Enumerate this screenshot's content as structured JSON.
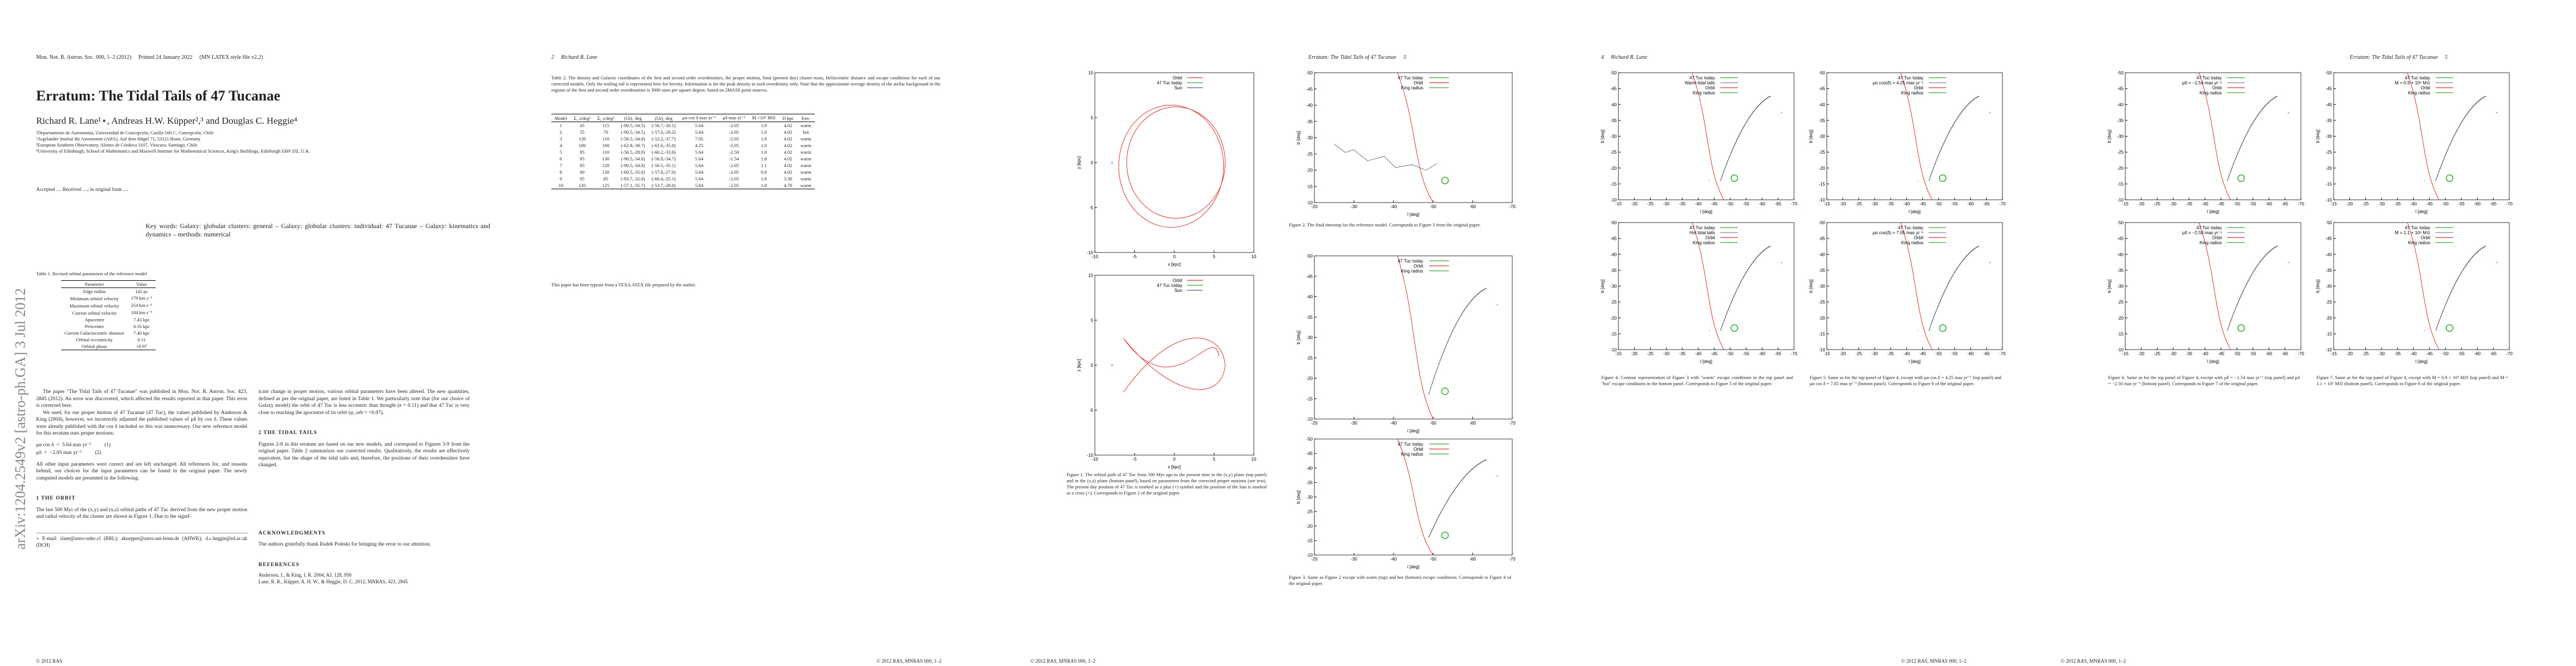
{
  "page1": {
    "header": "Mon. Not. R. Astron. Soc. 000, 1–2 (2012)     Printed 24 January 2022     (MN LATEX style file v2.2)",
    "title": "Erratum: The Tidal Tails of 47 Tucanae",
    "authors": "Richard R. Lane¹⋆, Andreas H.W. Küpper²,³ and Douglas C. Heggie⁴",
    "affiliations": [
      "¹Departamento de Astronomía, Universidad de Concepción, Casilla 160 C, Concepción, Chile",
      "²Argelander Institut für Astronomie (AIfA), Auf dem Hügel 71, 53121 Bonn, Germany",
      "³European Southern Observatory, Alonso de Córdova 3107, Vitacura, Santiago, Chile",
      "⁴University of Edinburgh, School of Mathematics and Maxwell Institute for Mathematical Sciences, King's Buildings, Edinburgh EH9 3JZ, U.K."
    ],
    "accepted": "Accepted .... Received ....; in original form ....",
    "keywords": "Key words: Galaxy: globular clusters: general – Galaxy: globular clusters: individual: 47 Tucanae – Galaxy: kinematics and dynamics – methods: numerical",
    "arxiv": "arXiv:1204.2549v2 [astro-ph.GA] 3 Jul 2012",
    "table1": {
      "caption": "Table 1. Revised orbital parameters of the reference model",
      "header": [
        "Parameter",
        "Value"
      ],
      "rows": [
        [
          "Edge radius",
          "142 pc"
        ],
        [
          "Minimum orbital velocity",
          "179 km s⁻¹"
        ],
        [
          "Maximum orbital velocity",
          "254 km s⁻¹"
        ],
        [
          "Current orbital velocity",
          "184 km s⁻¹"
        ],
        [
          "Apocentre",
          "7.43 kpc"
        ],
        [
          "Pericentre",
          "6.16 kpc"
        ],
        [
          "Current Galactocentric distance",
          "7.40 kpc"
        ],
        [
          "Orbital eccentricity",
          "0.11"
        ],
        [
          "Orbital phase",
          "+0.97"
        ]
      ]
    },
    "intro": [
      "The paper \"The Tidal Tails of 47 Tucanae\" was published in Mon. Not. R. Astron. Soc. 423, 2845 (2012). An error was discovered, which affected the results reported in that paper. This error is corrected here.",
      "We used, for our proper motion of 47 Tucanae (47 Tuc), the values published by Anderson & King (2004), however, we incorrectly adjusted the published values of μδ by cos δ. These values were already published with the cos δ included so this was unnecessary. Our new reference model for this erratum uses proper motions:"
    ],
    "eq1": "μα cos δ  =  5.64 mas yr⁻¹          (1)",
    "eq2": "μδ  =  −2.05 mas yr⁻¹          (2)",
    "after_eq": "All other input parameters were correct and are left unchanged. All references for, and reasons behind, our choices for the input parameters can be found in the original paper. The newly computed models are presented in the following.",
    "sec1": "1   THE ORBIT",
    "orbit": "The last 500 Myr of the (x,y) and (x,z) orbital paths of 47 Tuc derived from the new proper motion and radial velocity of the cluster are shown in Figure 1. Due to the signif-",
    "footnote": "⋆ E-mail: rlane@astro-udec.cl (RRL); akuepper@astro.uni-bonn.de (AHWK); d.c.heggie@ed.ac.uk (DCH)",
    "right_col": "icant change in proper motion, various orbital parameters have been altered. The new quantities, defined as per the original paper, are listed in Table 1. We particularly note that (for our choice of Galaxy model) the orbit of 47 Tuc is less eccentric than thought (e = 0.11) and that 47 Tuc is very close to reaching the apocentre of its orbit (φ_orb = +0.97).",
    "sec2": "2   THE TIDAL TAILS",
    "tails": "Figures 2-8 in this erratum are based on our new models, and correspond to Figures 3-9 from the original paper. Table 2 summarizes our corrected results. Qualitatively, the results are effectively equivalent, but the shape of the tidal tails and, therefore, the positions of their overdensities have changed.",
    "ack_head": "ACKNOWLEDGMENTS",
    "ack": "The authors gratefully thank Radek Poleski for bringing the error to our attention.",
    "ref_head": "REFERENCES",
    "refs": [
      "Anderson, J., & King, I. R. 2004, AJ, 128, 950",
      "Lane, R. R., Küpper, A. H. W., & Heggie, D. C. 2012, MNRAS, 423, 2845"
    ],
    "footer": "© 2012 RAS"
  },
  "page2": {
    "header": "2     Richard R. Lane",
    "table2": {
      "caption": "Table 2. The density and Galactic coordinates of the first and second order overdensities, the proper motion, final (present day) cluster mass, Heliocentric distance and escape conditions for each of our corrected models. Only the trailing tail is represented here for brevity. Information is for the peak density in each overdensity only. Note that the approximate average density of the stellar background in the regions of the first and second order overdensities is 3000 stars per square degree, based on 2MASS point sources.",
      "header": [
        "Model",
        "Σ₁ s/deg²",
        "Σ₂ s/deg²",
        "(l,b)₁ deg",
        "(l,b)₂ deg",
        "μα cos δ mas yr⁻¹",
        "μδ mas yr⁻¹",
        "M ×10⁶ M⊙",
        "D kpc",
        "Env."
      ],
      "rows": [
        [
          "1",
          "45",
          "115",
          "(-90.5,-34.5)",
          "(-56.7,-26.1)",
          "5.64",
          "-2.05",
          "1.0",
          "4.02",
          "warm"
        ],
        [
          "2",
          "55",
          "70",
          "(-90.5,-34.5)",
          "(-57.0,-29.2)",
          "5.64",
          "-2.05",
          "1.0",
          "4.02",
          "hot"
        ],
        [
          "3",
          "120",
          "110",
          "(-56.5,-34.0)",
          "(-52.2,-37.7)",
          "7.05",
          "-2.05",
          "1.0",
          "4.02",
          "warm"
        ],
        [
          "4",
          "100",
          "100",
          "(-62.8,-38.7)",
          "(-61.6,-35.0)",
          "4.25",
          "-2.05",
          "1.0",
          "4.02",
          "warm"
        ],
        [
          "5",
          "85",
          "110",
          "(-56.5,-28.0)",
          "(-60.2,-33.6)",
          "5.64",
          "-2.50",
          "1.0",
          "4.02",
          "warm"
        ],
        [
          "6",
          "95",
          "130",
          "(-90.5,-34.0)",
          "(-56.9,-34.7)",
          "5.64",
          "-1.54",
          "1.0",
          "4.02",
          "warm"
        ],
        [
          "7",
          "85",
          "120",
          "(-90.5,-34.0)",
          "(-56.5,-35.1)",
          "5.64",
          "-2.05",
          "1.1",
          "4.02",
          "warm"
        ],
        [
          "8",
          "60",
          "130",
          "(-60.5,-35.0)",
          "(-57.8,-27.0)",
          "5.64",
          "-2.05",
          "0.9",
          "4.02",
          "warm"
        ],
        [
          "9",
          "95",
          "85",
          "(-93.7,-32.0)",
          "(-60.4,-25.1)",
          "5.64",
          "-2.05",
          "1.0",
          "3.30",
          "warm"
        ],
        [
          "10",
          "120",
          "125",
          "(-57.1,-35.7)",
          "(-53.7,-28.0)",
          "5.64",
          "-2.05",
          "1.0",
          "4.70",
          "warm"
        ]
      ]
    },
    "typeset": "This paper has been typeset from a TEX/LATEX file prepared by the author.",
    "footer": "© 2012 RAS, MNRAS 000, 1–2"
  },
  "page3": {
    "header": "Erratum: The Tidal Tails of 47 Tucanae     3",
    "panels": [
      {
        "xlabel": "x [kpc]",
        "ylabel": "y [kpc]",
        "xticks": [
          -10,
          -5,
          0,
          5,
          10
        ],
        "yticks": [
          -10,
          -5,
          0,
          5,
          10
        ],
        "legend": [
          {
            "label": "Orbit",
            "color": "#d33"
          },
          {
            "label": "47 Tuc today",
            "color": "#3a3"
          },
          {
            "label": "Sun",
            "color": "#55a"
          }
        ]
      },
      {
        "xlabel": "x [kpc]",
        "ylabel": "z [kpc]",
        "xticks": [
          -10,
          -5,
          0,
          5,
          10
        ],
        "yticks": [
          -10,
          -5,
          0,
          5,
          10
        ],
        "legend": [
          {
            "label": "Orbit",
            "color": "#d33"
          },
          {
            "label": "47 Tuc today",
            "color": "#3a3"
          },
          {
            "label": "Sun",
            "color": "#55a"
          }
        ]
      },
      {
        "xlabel": "l [deg]",
        "ylabel": "b [deg]",
        "xticks": [
          -20,
          -30,
          -40,
          -50,
          -60,
          -70
        ],
        "yticks": [
          -10,
          -15,
          -20,
          -25,
          -30,
          -35,
          -40,
          -45,
          -50
        ],
        "legend": [
          {
            "label": "47 Tuc today",
            "color": "#3a3"
          },
          {
            "label": "Orbit",
            "color": "#d33"
          },
          {
            "label": "King radius",
            "color": "#3a3"
          }
        ]
      },
      {
        "xlabel": "l [deg]",
        "ylabel": "b [deg]",
        "xticks": [
          -20,
          -30,
          -40,
          -50,
          -60,
          -70
        ],
        "yticks": [
          -10,
          -15,
          -20,
          -25,
          -30,
          -35,
          -40,
          -45,
          -50
        ],
        "legend": [
          {
            "label": "47 Tuc today",
            "color": "#3a3"
          },
          {
            "label": "Orbit",
            "color": "#d33"
          },
          {
            "label": "King radius",
            "color": "#3a3"
          }
        ]
      },
      {
        "xlabel": "l [deg]",
        "ylabel": "b [deg]",
        "xticks": [
          -20,
          -30,
          -40,
          -50,
          -60,
          -70
        ],
        "yticks": [
          -10,
          -15,
          -20,
          -25,
          -30,
          -35,
          -40,
          -45,
          -50
        ],
        "legend": [
          {
            "label": "47 Tuc today",
            "color": "#3a3"
          },
          {
            "label": "Orbit",
            "color": "#d33"
          },
          {
            "label": "King radius",
            "color": "#3a3"
          }
        ]
      }
    ],
    "fig1": "Figure 1. The orbital path of 47 Tuc from 500 Myr ago to the present time in the (x,y) plane (top panel) and in the (x,z) plane (bottom panel), based on parameters from the corrected proper motions (see text). The present day position of 47 Tuc is marked as a plus (+) symbol and the position of the Sun is marked as a cross (×). Corresponds to Figure 2 of the original paper.",
    "fig2": "Figure 2. The final timestep for the reference model. Corresponds to Figure 3 from the original paper.",
    "fig3": "Figure 3. Same as Figure 2 except with warm (top) and hot (bottom) escape conditions. Corresponds to Figure 4 of the original paper.",
    "footer": "© 2012 RAS, MNRAS 000, 1–2"
  },
  "page4": {
    "header": "4     Richard R. Lane",
    "panels": [
      {
        "xlabel": "l [deg]",
        "ylabel": "b [deg]",
        "xticks": [
          -15,
          -20,
          -25,
          -30,
          -35,
          -40,
          -45,
          -50,
          -55,
          -60,
          -65,
          -70
        ],
        "yticks": [
          -10,
          -15,
          -20,
          -25,
          -30,
          -35,
          -40,
          -45,
          -50
        ],
        "legend": [
          {
            "label": "47 Tuc today",
            "color": "#3a3"
          },
          {
            "label": "Warm tidal tails",
            "color": "#888"
          },
          {
            "label": "Orbit",
            "color": "#d33"
          },
          {
            "label": "King radius",
            "color": "#3a3"
          }
        ]
      },
      {
        "xlabel": "l [deg]",
        "ylabel": "b [deg]",
        "xticks": [
          -15,
          -20,
          -25,
          -30,
          -35,
          -40,
          -45,
          -50,
          -55,
          -60,
          -65,
          -70
        ],
        "yticks": [
          -10,
          -15,
          -20,
          -25,
          -30,
          -35,
          -40,
          -45,
          -50
        ],
        "legend": [
          {
            "label": "47 Tuc today",
            "color": "#3a3"
          },
          {
            "label": "μα cos(δ) = 4.25 mas yr⁻¹",
            "color": "#888"
          },
          {
            "label": "Orbit",
            "color": "#d33"
          },
          {
            "label": "King radius",
            "color": "#3a3"
          }
        ]
      },
      {
        "xlabel": "l [deg]",
        "ylabel": "b [deg]",
        "xticks": [
          -15,
          -20,
          -25,
          -30,
          -35,
          -40,
          -45,
          -50,
          -55,
          -60,
          -65,
          -70
        ],
        "yticks": [
          -10,
          -15,
          -20,
          -25,
          -30,
          -35,
          -40,
          -45,
          -50
        ],
        "legend": [
          {
            "label": "47 Tuc today",
            "color": "#3a3"
          },
          {
            "label": "Hot tidal tails",
            "color": "#888"
          },
          {
            "label": "Orbit",
            "color": "#d33"
          },
          {
            "label": "King radius",
            "color": "#3a3"
          }
        ]
      },
      {
        "xlabel": "l [deg]",
        "ylabel": "b [deg]",
        "xticks": [
          -15,
          -20,
          -25,
          -30,
          -35,
          -40,
          -45,
          -50,
          -55,
          -60,
          -65,
          -70
        ],
        "yticks": [
          -10,
          -15,
          -20,
          -25,
          -30,
          -35,
          -40,
          -45,
          -50
        ],
        "legend": [
          {
            "label": "47 Tuc today",
            "color": "#3a3"
          },
          {
            "label": "μα cos(δ) = 7.05 mas yr⁻¹",
            "color": "#888"
          },
          {
            "label": "Orbit",
            "color": "#d33"
          },
          {
            "label": "King radius",
            "color": "#3a3"
          }
        ]
      }
    ],
    "fig4": "Figure 4. Contour representation of Figure 3 with \"warm\" escape conditions in the top panel and \"hot\" escape conditions in the bottom panel. Corresponds to Figure 5 of the original paper.",
    "fig5": "Figure 5. Same as for the top panel of Figure 4, except with μα cos δ = 4.25 mas yr⁻¹ (top panel) and μα cos δ = 7.05 mas yr⁻¹ (bottom panel). Corresponds to Figure 6 of the original paper.",
    "footer": "© 2012 RAS, MNRAS 000, 1–2"
  },
  "page5": {
    "header": "Erratum: The Tidal Tails of 47 Tucanae     5",
    "panels": [
      {
        "xlabel": "l [deg]",
        "ylabel": "b [deg]",
        "xticks": [
          -15,
          -20,
          -25,
          -30,
          -35,
          -40,
          -45,
          -50,
          -55,
          -60,
          -65,
          -70
        ],
        "yticks": [
          -10,
          -15,
          -20,
          -25,
          -30,
          -35,
          -40,
          -45,
          -50
        ],
        "legend": [
          {
            "label": "47 Tuc today",
            "color": "#3a3"
          },
          {
            "label": "μδ = −1.54 mas yr⁻¹",
            "color": "#888"
          },
          {
            "label": "Orbit",
            "color": "#d33"
          },
          {
            "label": "King radius",
            "color": "#3a3"
          }
        ]
      },
      {
        "xlabel": "l [deg]",
        "ylabel": "b [deg]",
        "xticks": [
          -15,
          -20,
          -25,
          -30,
          -35,
          -40,
          -45,
          -50,
          -55,
          -60,
          -65,
          -70
        ],
        "yticks": [
          -10,
          -15,
          -20,
          -25,
          -30,
          -35,
          -40,
          -45,
          -50
        ],
        "legend": [
          {
            "label": "47 Tuc today",
            "color": "#3a3"
          },
          {
            "label": "M = 0.9 × 10⁶ M⊙",
            "color": "#888"
          },
          {
            "label": "Orbit",
            "color": "#d33"
          },
          {
            "label": "King radius",
            "color": "#3a3"
          }
        ]
      },
      {
        "xlabel": "l [deg]",
        "ylabel": "b [deg]",
        "xticks": [
          -15,
          -20,
          -25,
          -30,
          -35,
          -40,
          -45,
          -50,
          -55,
          -60,
          -65,
          -70
        ],
        "yticks": [
          -10,
          -15,
          -20,
          -25,
          -30,
          -35,
          -40,
          -45,
          -50
        ],
        "legend": [
          {
            "label": "47 Tuc today",
            "color": "#3a3"
          },
          {
            "label": "μδ = −2.50 mas yr⁻¹",
            "color": "#888"
          },
          {
            "label": "Orbit",
            "color": "#d33"
          },
          {
            "label": "King radius",
            "color": "#3a3"
          }
        ]
      },
      {
        "xlabel": "l [deg]",
        "ylabel": "b [deg]",
        "xticks": [
          -15,
          -20,
          -25,
          -30,
          -35,
          -40,
          -45,
          -50,
          -55,
          -60,
          -65,
          -70
        ],
        "yticks": [
          -10,
          -15,
          -20,
          -25,
          -30,
          -35,
          -40,
          -45,
          -50
        ],
        "legend": [
          {
            "label": "47 Tuc today",
            "color": "#3a3"
          },
          {
            "label": "M = 1.1 × 10⁶ M⊙",
            "color": "#888"
          },
          {
            "label": "Orbit",
            "color": "#d33"
          },
          {
            "label": "King radius",
            "color": "#3a3"
          }
        ]
      }
    ],
    "fig6": "Figure 6. Same as for the top panel of Figure 4, except with μδ = −1.54 mas yr⁻¹ (top panel) and μδ = −2.50 mas yr⁻¹ (bottom panel). Corresponds to Figure 7 of the original paper.",
    "fig7": "Figure 7. Same as for the top panel of Figure 4, except with M = 0.9 × 10⁶ M⊙ (top panel) and M = 1.1 × 10⁶ M⊙ (bottom panel). Corresponds to Figure 8 of the original paper.",
    "footer": "© 2012 RAS, MNRAS 000, 1–2"
  }
}
